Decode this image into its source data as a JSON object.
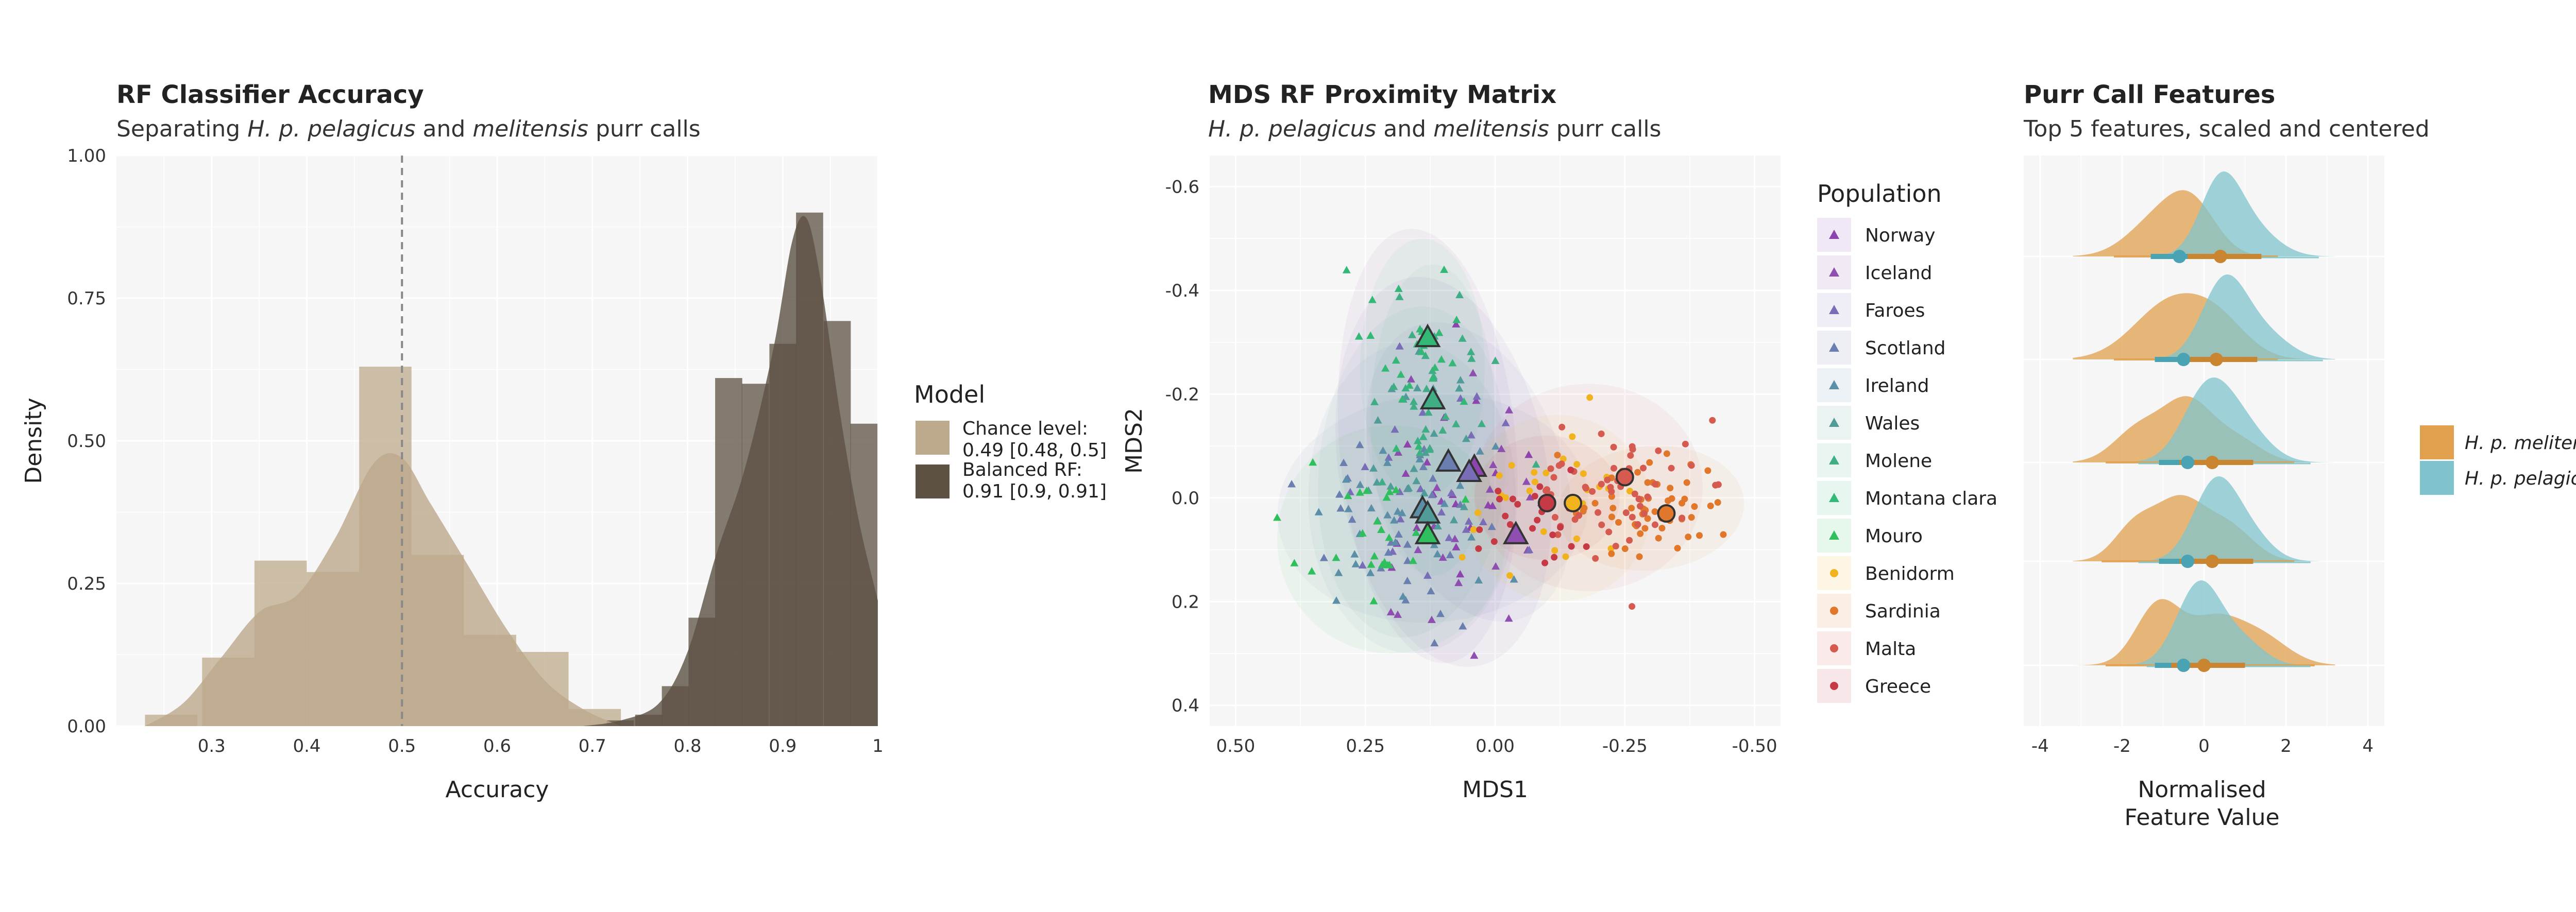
{
  "colors": {
    "chance": "#bda98c",
    "balanced": "#5c5143",
    "melitensis": "#e0a04d",
    "pelagicus": "#7fc4cc"
  },
  "panel1": {
    "title": "RF Classifier Accuracy",
    "subtitle_parts": [
      "Separating ",
      "H. p. pelagicus",
      " and ",
      "melitensis",
      " purr calls"
    ],
    "xlabel": "Accuracy",
    "ylabel": "Density",
    "legend_title": "Model",
    "legend": [
      {
        "line1": "Chance level:",
        "line2": "0.49 [0.48, 0.5]"
      },
      {
        "line1": "Balanced RF:",
        "line2": "0.91 [0.9, 0.91]"
      }
    ]
  },
  "panel2": {
    "title": "MDS RF Proximity Matrix",
    "subtitle_parts": [
      "H. p. pelagicus",
      " and ",
      "melitensis",
      " purr calls"
    ],
    "xlabel": "MDS1",
    "ylabel": "MDS2",
    "legend_title": "Population",
    "populations": [
      "Norway",
      "Iceland",
      "Faroes",
      "Scotland",
      "Ireland",
      "Wales",
      "Molene",
      "Montana clara",
      "Mouro",
      "Benidorm",
      "Sardinia",
      "Malta",
      "Greece"
    ]
  },
  "panel3": {
    "title": "Purr Call Features",
    "subtitle": "Top 5 features, scaled and centered",
    "xlabel_line1": "Normalised",
    "xlabel_line2": "Feature Value",
    "legend": [
      "H. p. melitensis",
      "H. p. pelagicus"
    ]
  },
  "chart_data": [
    {
      "type": "histogram-density",
      "title": "RF Classifier Accuracy",
      "xlabel": "Accuracy",
      "ylabel": "Density",
      "xlim": [
        0.2,
        1.0
      ],
      "ylim": [
        0,
        1.0
      ],
      "x_ticks": [
        0.3,
        0.4,
        0.5,
        0.6,
        0.7,
        0.8,
        0.9,
        1.0
      ],
      "y_ticks": [
        "0.00",
        "0.25",
        "0.50",
        "0.75",
        "1.00"
      ],
      "reference_line_x": 0.5,
      "series": [
        {
          "name": "Chance level: 0.49 [0.48, 0.5]",
          "bin_width": 0.055,
          "bins_left": [
            0.23,
            0.29,
            0.345,
            0.4,
            0.455,
            0.51,
            0.565,
            0.62,
            0.675
          ],
          "bin_heights": [
            0.02,
            0.12,
            0.29,
            0.27,
            0.63,
            0.3,
            0.16,
            0.13,
            0.03
          ],
          "density_x": [
            0.23,
            0.27,
            0.31,
            0.35,
            0.39,
            0.43,
            0.47,
            0.5,
            0.53,
            0.57,
            0.61,
            0.65,
            0.69,
            0.73
          ],
          "density_y": [
            0.0,
            0.04,
            0.12,
            0.2,
            0.23,
            0.33,
            0.46,
            0.47,
            0.39,
            0.28,
            0.17,
            0.08,
            0.03,
            0.0
          ]
        },
        {
          "name": "Balanced RF: 0.91 [0.9, 0.91]",
          "bin_width": 0.0285,
          "bins_left": [
            0.715,
            0.745,
            0.773,
            0.801,
            0.829,
            0.857,
            0.886,
            0.914,
            0.943,
            0.971
          ],
          "bin_heights": [
            0.01,
            0.02,
            0.07,
            0.19,
            0.61,
            0.6,
            0.67,
            0.9,
            0.71,
            0.53
          ],
          "density_x": [
            0.69,
            0.73,
            0.77,
            0.8,
            0.83,
            0.86,
            0.89,
            0.91,
            0.925,
            0.94,
            0.96,
            0.98,
            1.0
          ],
          "density_y": [
            0.0,
            0.01,
            0.04,
            0.13,
            0.3,
            0.45,
            0.66,
            0.85,
            0.89,
            0.78,
            0.55,
            0.36,
            0.22
          ]
        }
      ]
    },
    {
      "type": "scatter",
      "title": "MDS RF Proximity Matrix",
      "xlabel": "MDS1",
      "ylabel": "MDS2",
      "x_reversed": true,
      "y_reversed": true,
      "xlim": [
        0.5,
        -0.5
      ],
      "ylim": [
        -0.6,
        0.4
      ],
      "x_ticks": [
        "0.50",
        "0.25",
        "0.00",
        "-0.25",
        "-0.50"
      ],
      "y_ticks": [
        "-0.6",
        "-0.4",
        "-0.2",
        "0.0",
        "0.2",
        "0.4"
      ],
      "legend": [
        "Norway",
        "Iceland",
        "Faroes",
        "Scotland",
        "Ireland",
        "Wales",
        "Molene",
        "Montana clara",
        "Mouro",
        "Benidorm",
        "Sardinia",
        "Malta",
        "Greece"
      ],
      "centroids": [
        {
          "population": "Norway",
          "x": 0.04,
          "y": -0.06
        },
        {
          "population": "Iceland",
          "x": -0.04,
          "y": 0.07
        },
        {
          "population": "Faroes",
          "x": 0.05,
          "y": -0.05
        },
        {
          "population": "Scotland",
          "x": 0.09,
          "y": -0.07
        },
        {
          "population": "Ireland",
          "x": 0.14,
          "y": 0.02
        },
        {
          "population": "Wales",
          "x": 0.13,
          "y": 0.03
        },
        {
          "population": "Molene",
          "x": 0.12,
          "y": -0.19
        },
        {
          "population": "Montana clara",
          "x": 0.13,
          "y": -0.31
        },
        {
          "population": "Mouro",
          "x": 0.13,
          "y": 0.07
        },
        {
          "population": "Benidorm",
          "x": -0.15,
          "y": 0.01
        },
        {
          "population": "Sardinia",
          "x": -0.33,
          "y": 0.03
        },
        {
          "population": "Malta",
          "x": -0.25,
          "y": -0.04
        },
        {
          "population": "Greece",
          "x": -0.1,
          "y": 0.01
        }
      ]
    },
    {
      "type": "ridgeline-density",
      "title": "Purr Call Features",
      "xlabel": "Normalised Feature Value",
      "xlim": [
        -4.4,
        4.4
      ],
      "x_ticks": [
        -4,
        -2,
        0,
        2,
        4
      ],
      "rows": 5,
      "series": [
        {
          "name": "H. p. melitensis",
          "row_medians": [
            -0.6,
            -0.5,
            -0.4,
            -0.4,
            -0.5
          ]
        },
        {
          "name": "H. p. pelagicus",
          "row_medians": [
            0.4,
            0.3,
            0.2,
            0.2,
            0.0
          ]
        }
      ]
    }
  ]
}
